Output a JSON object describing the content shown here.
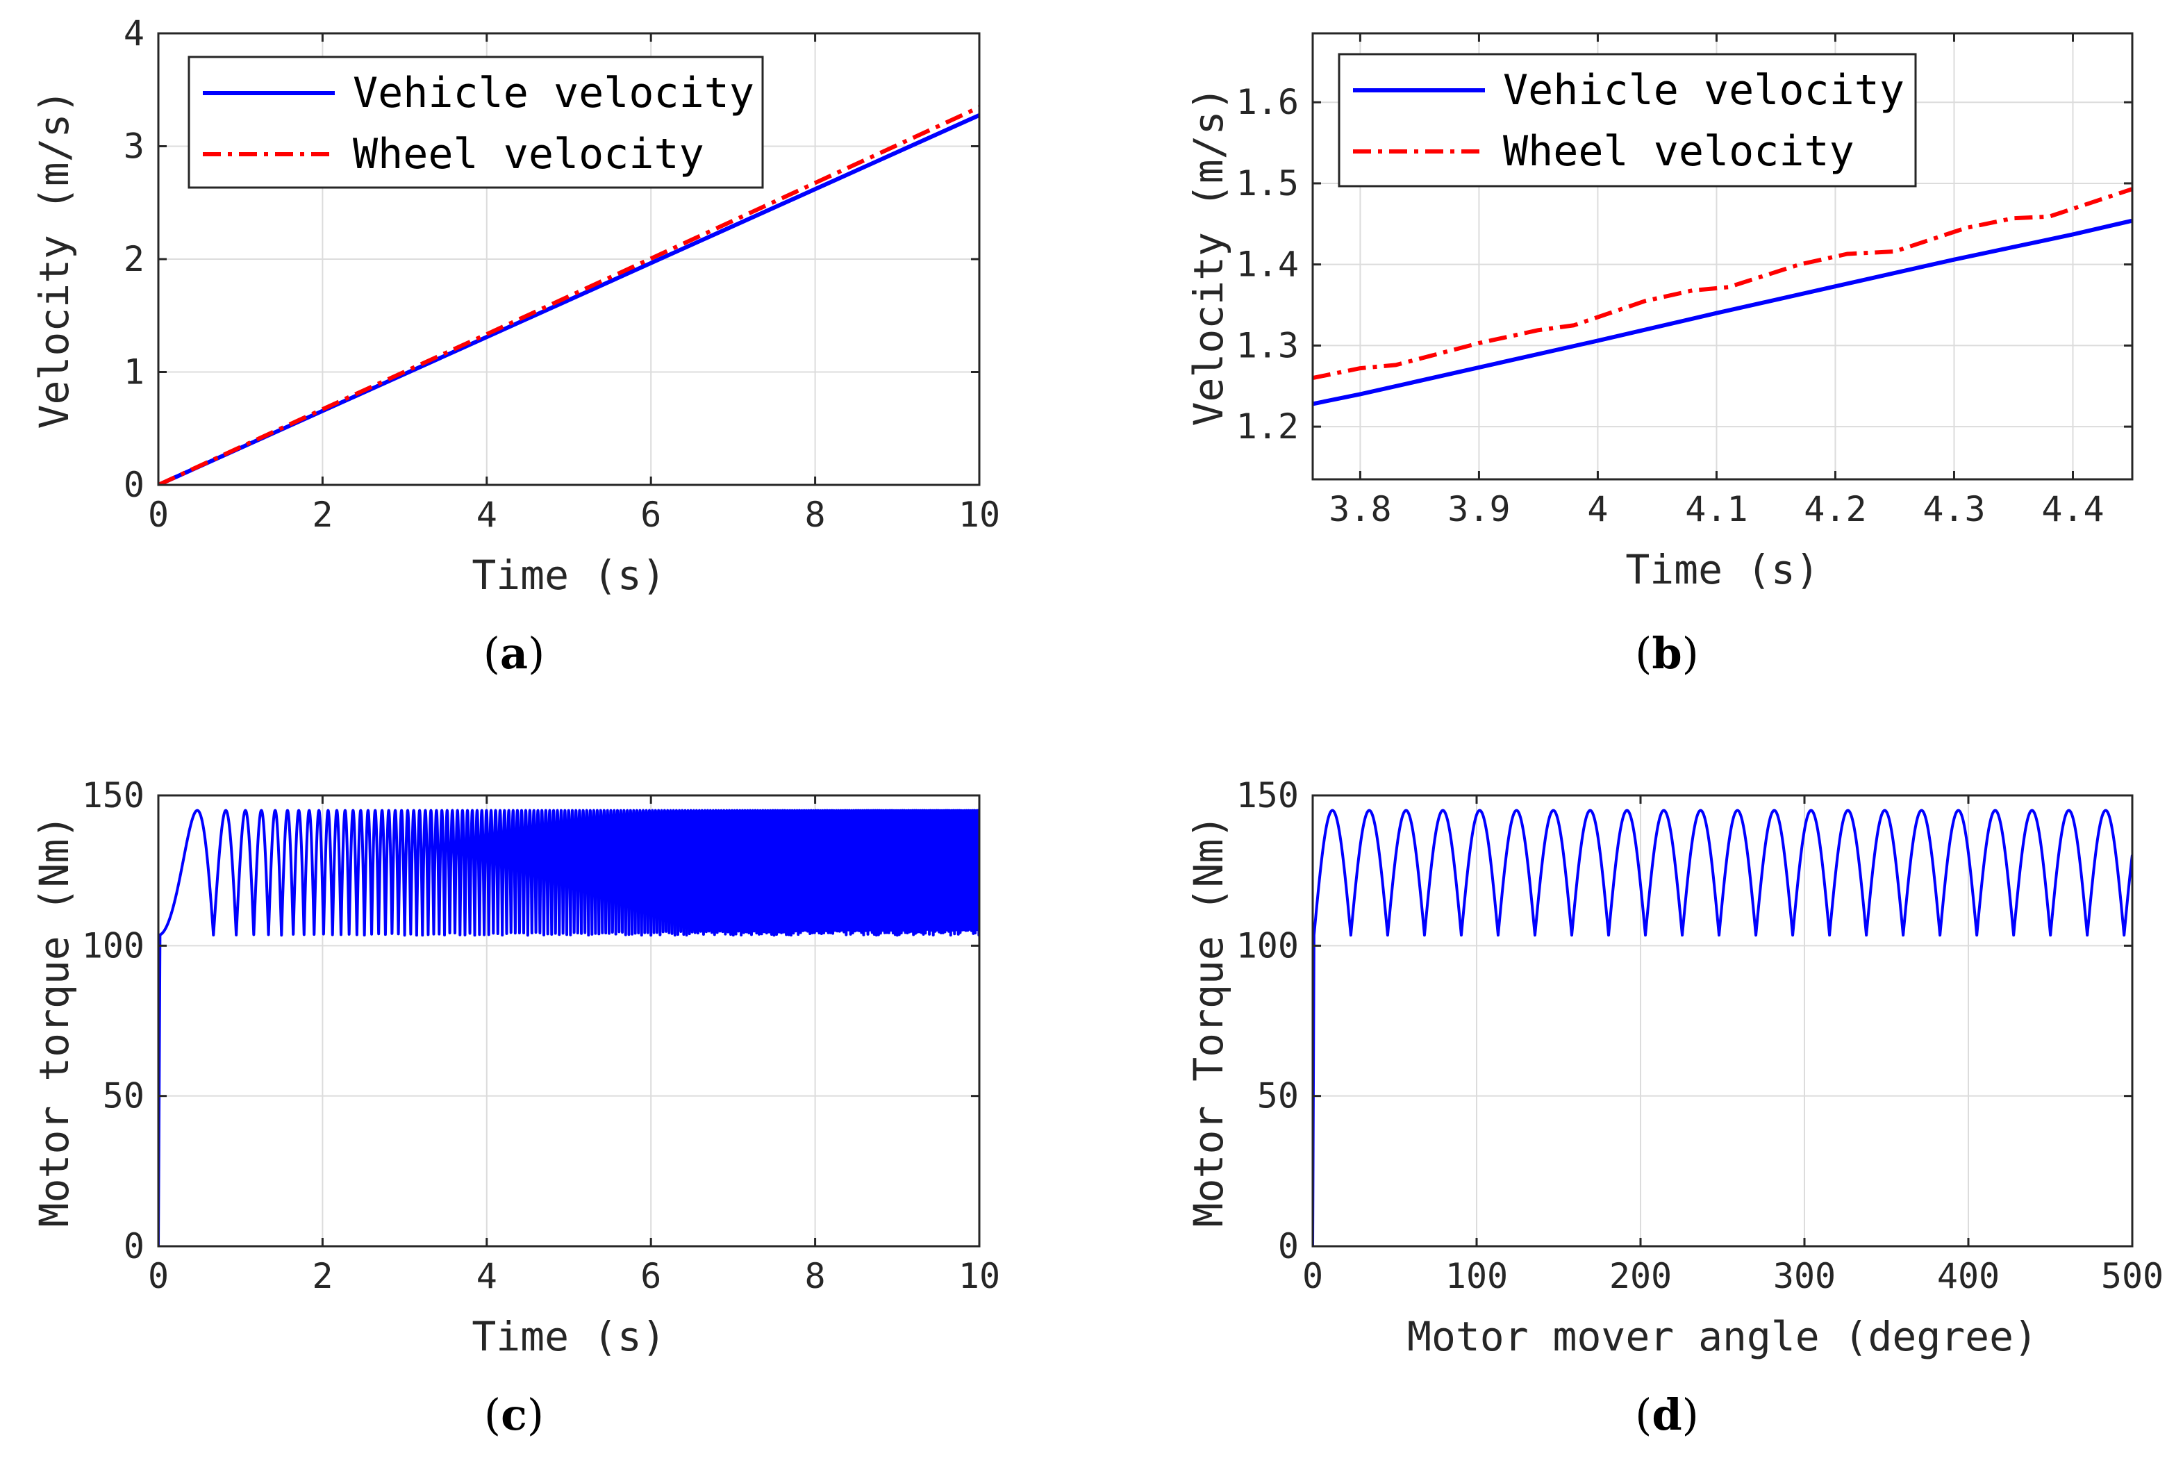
{
  "colors": {
    "vehicle": "#0000ff",
    "wheel": "#ff0000",
    "axis": "#262626",
    "grid": "#dcdcdc"
  },
  "chart_data": [
    {
      "id": "a",
      "type": "line",
      "caption": {
        "open": "(",
        "letter": "a",
        "close": ")"
      },
      "xlabel": "Time (s)",
      "ylabel": "Velocity (m/s)",
      "xlim": [
        0,
        10
      ],
      "ylim": [
        0,
        4
      ],
      "xticks": [
        0,
        2,
        4,
        6,
        8,
        10
      ],
      "yticks": [
        0,
        1,
        2,
        3,
        4
      ],
      "xtick_labels": [
        "0",
        "2",
        "4",
        "6",
        "8",
        "10"
      ],
      "ytick_labels": [
        "0",
        "1",
        "2",
        "3",
        "4"
      ],
      "grid": true,
      "legend": {
        "position": "top-left",
        "entries": [
          "Vehicle velocity",
          "Wheel velocity"
        ]
      },
      "series": [
        {
          "name": "Vehicle velocity",
          "style": "solid",
          "x": [
            0,
            2,
            4,
            6,
            8,
            10
          ],
          "y": [
            0,
            0.655,
            1.31,
            1.965,
            2.62,
            3.275
          ]
        },
        {
          "name": "Wheel velocity",
          "style": "dashdot",
          "x": [
            0,
            2,
            4,
            6,
            8,
            10
          ],
          "y": [
            0,
            0.67,
            1.335,
            2.005,
            2.675,
            3.345
          ]
        }
      ]
    },
    {
      "id": "b",
      "type": "line",
      "caption": {
        "open": "(",
        "letter": "b",
        "close": ")"
      },
      "xlabel": "Time (s)",
      "ylabel": "Velocity (m/s)",
      "xlim": [
        3.76,
        4.45
      ],
      "ylim": [
        1.135,
        1.685
      ],
      "xticks": [
        3.8,
        3.9,
        4.0,
        4.1,
        4.2,
        4.3,
        4.4
      ],
      "yticks": [
        1.2,
        1.3,
        1.4,
        1.5,
        1.6
      ],
      "xtick_labels": [
        "3.8",
        "3.9",
        "4",
        "4.1",
        "4.2",
        "4.3",
        "4.4"
      ],
      "ytick_labels": [
        "1.2",
        "1.3",
        "1.4",
        "1.5",
        "1.6"
      ],
      "grid": true,
      "legend": {
        "position": "top-left",
        "entries": [
          "Vehicle velocity",
          "Wheel velocity"
        ]
      },
      "series": [
        {
          "name": "Vehicle velocity",
          "style": "solid",
          "x": [
            3.76,
            3.8,
            3.9,
            4.0,
            4.1,
            4.2,
            4.3,
            4.4,
            4.45
          ],
          "y": [
            1.228,
            1.24,
            1.273,
            1.306,
            1.34,
            1.373,
            1.406,
            1.437,
            1.454
          ]
        },
        {
          "name": "Wheel velocity",
          "style": "dashdot",
          "x": [
            3.76,
            3.8,
            3.83,
            3.9,
            3.95,
            3.98,
            4.04,
            4.08,
            4.11,
            4.17,
            4.21,
            4.25,
            4.31,
            4.35,
            4.38,
            4.45
          ],
          "y": [
            1.26,
            1.272,
            1.276,
            1.303,
            1.319,
            1.325,
            1.355,
            1.368,
            1.372,
            1.4,
            1.413,
            1.416,
            1.445,
            1.457,
            1.459,
            1.493
          ]
        }
      ]
    },
    {
      "id": "c",
      "type": "line",
      "caption": {
        "open": "(",
        "letter": "c",
        "close": ")"
      },
      "xlabel": "Time (s)",
      "ylabel": "Motor torque (Nm)",
      "xlim": [
        0,
        10
      ],
      "ylim": [
        0,
        150
      ],
      "xticks": [
        0,
        2,
        4,
        6,
        8,
        10
      ],
      "yticks": [
        0,
        50,
        100,
        150
      ],
      "xtick_labels": [
        "0",
        "2",
        "4",
        "6",
        "8",
        "10"
      ],
      "ytick_labels": [
        "0",
        "50",
        "100",
        "150"
      ],
      "grid": true,
      "series": [
        {
          "name": "",
          "style": "solid",
          "baseline": 0,
          "start": 103.5,
          "min": 103.5,
          "max": 145,
          "rise_end": 0.02,
          "ripple_period_deg": 22.5,
          "angle_slope_deg_per_s2": 50,
          "x_max": 10
        }
      ]
    },
    {
      "id": "d",
      "type": "line",
      "caption": {
        "open": "(",
        "letter": "d",
        "close": ")"
      },
      "xlabel": "Motor mover angle (degree)",
      "ylabel": "Motor Torque (Nm)",
      "xlim": [
        0,
        500
      ],
      "ylim": [
        0,
        150
      ],
      "xticks": [
        0,
        100,
        200,
        300,
        400,
        500
      ],
      "yticks": [
        0,
        50,
        100,
        150
      ],
      "xtick_labels": [
        "0",
        "100",
        "200",
        "300",
        "400",
        "500"
      ],
      "ytick_labels": [
        "0",
        "50",
        "100",
        "150"
      ],
      "grid": true,
      "series": [
        {
          "name": "",
          "style": "solid",
          "baseline": 0,
          "start": 103.5,
          "min": 103.5,
          "max": 145,
          "rise_end": 0.8,
          "ripple_period_deg": 22.5,
          "x_max": 500
        }
      ]
    }
  ]
}
